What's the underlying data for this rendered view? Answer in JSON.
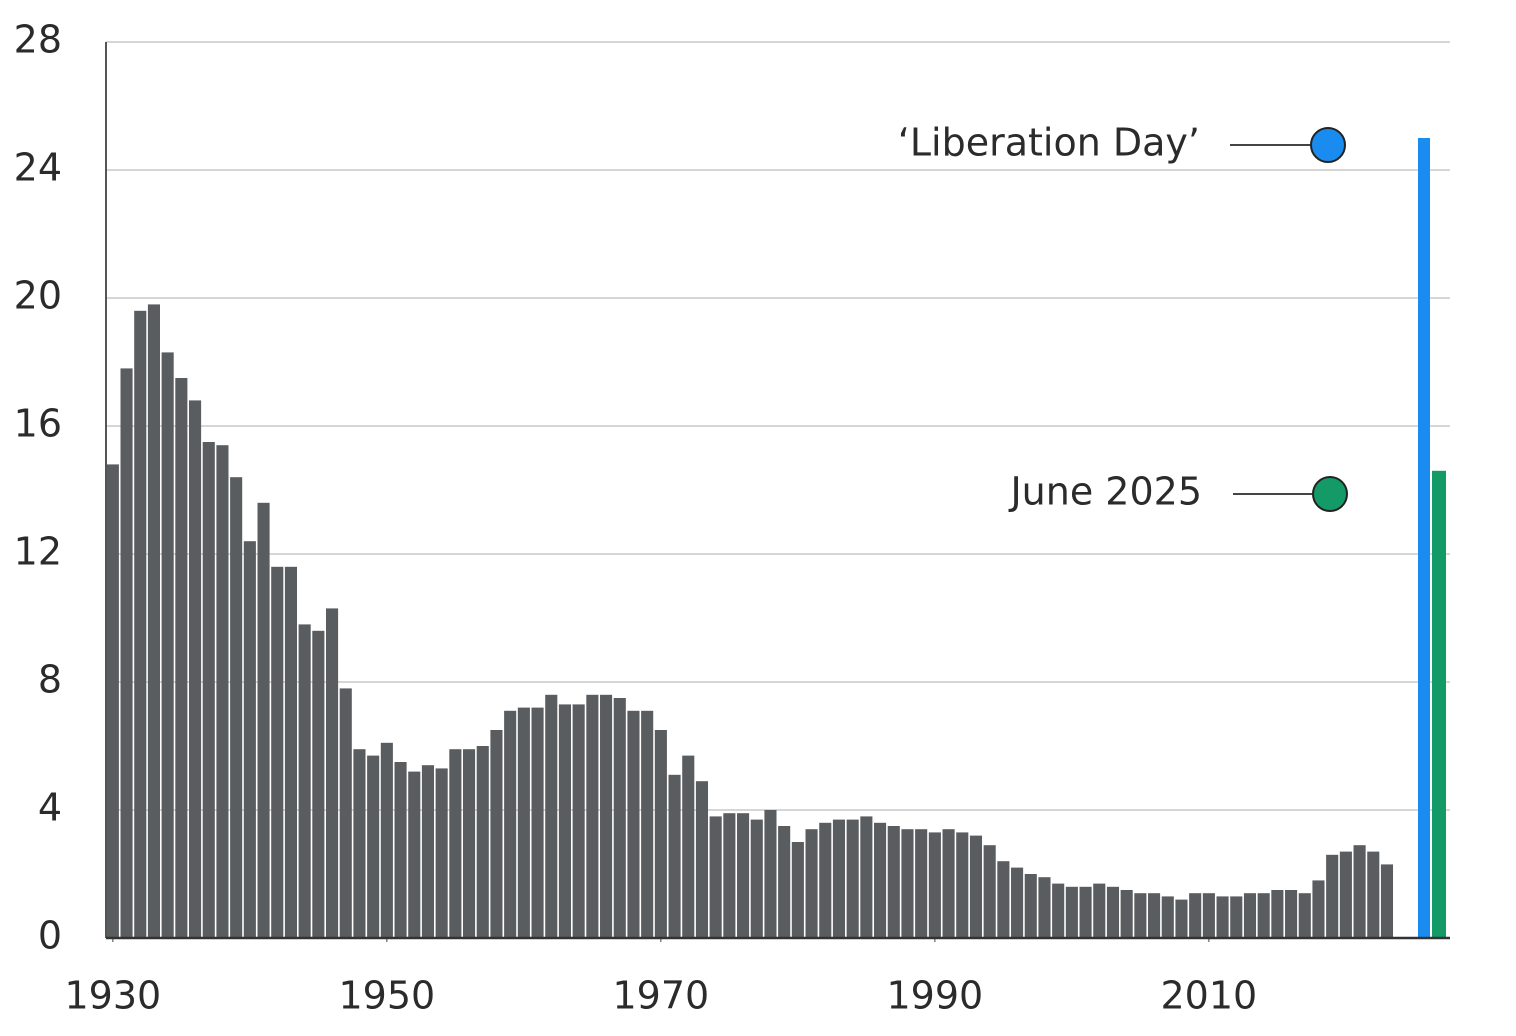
{
  "chart_data": {
    "type": "bar",
    "x": [
      1930,
      1931,
      1932,
      1933,
      1934,
      1935,
      1936,
      1937,
      1938,
      1939,
      1940,
      1941,
      1942,
      1943,
      1944,
      1945,
      1946,
      1947,
      1948,
      1949,
      1950,
      1951,
      1952,
      1953,
      1954,
      1955,
      1956,
      1957,
      1958,
      1959,
      1960,
      1961,
      1962,
      1963,
      1964,
      1965,
      1966,
      1967,
      1968,
      1969,
      1970,
      1971,
      1972,
      1973,
      1974,
      1975,
      1976,
      1977,
      1978,
      1979,
      1980,
      1981,
      1982,
      1983,
      1984,
      1985,
      1986,
      1987,
      1988,
      1989,
      1990,
      1991,
      1992,
      1993,
      1994,
      1995,
      1996,
      1997,
      1998,
      1999,
      2000,
      2001,
      2002,
      2003,
      2004,
      2005,
      2006,
      2007,
      2008,
      2009,
      2010,
      2011,
      2012,
      2013,
      2014,
      2015,
      2016,
      2017,
      2018,
      2019,
      2020,
      2021,
      2022,
      2023
    ],
    "values": [
      14.8,
      17.8,
      19.6,
      19.8,
      18.3,
      17.5,
      16.8,
      15.5,
      15.4,
      14.4,
      12.4,
      13.6,
      11.6,
      11.6,
      9.8,
      9.6,
      10.3,
      7.8,
      5.9,
      5.7,
      6.1,
      5.5,
      5.2,
      5.4,
      5.3,
      5.9,
      5.9,
      6.0,
      6.5,
      7.1,
      7.2,
      7.2,
      7.6,
      7.3,
      7.3,
      7.6,
      7.6,
      7.5,
      7.1,
      7.1,
      6.5,
      5.1,
      5.7,
      4.9,
      3.8,
      3.9,
      3.9,
      3.7,
      4.0,
      3.5,
      3.0,
      3.4,
      3.6,
      3.7,
      3.7,
      3.8,
      3.6,
      3.5,
      3.4,
      3.4,
      3.3,
      3.4,
      3.3,
      3.2,
      2.9,
      2.4,
      2.2,
      2.0,
      1.9,
      1.7,
      1.6,
      1.6,
      1.7,
      1.6,
      1.5,
      1.4,
      1.4,
      1.3,
      1.2,
      1.4,
      1.4,
      1.3,
      1.3,
      1.4,
      1.4,
      1.5,
      1.5,
      1.4,
      1.8,
      2.6,
      2.7,
      2.9,
      2.7,
      2.3
    ],
    "color": "#5a5d60",
    "highlights": [
      {
        "label": "‘Liberation Day’",
        "value": 25,
        "color": "#1a8cf0"
      },
      {
        "label": "June 2025",
        "value": 14.6,
        "color": "#139a66"
      }
    ],
    "xlim": [
      1929.5,
      2027.6
    ],
    "xticks": [
      1930,
      1950,
      1970,
      1990,
      2010
    ],
    "ylim": [
      0,
      28
    ],
    "yticks": [
      0,
      4,
      8,
      12,
      16,
      20,
      24,
      28
    ],
    "grid": true
  }
}
